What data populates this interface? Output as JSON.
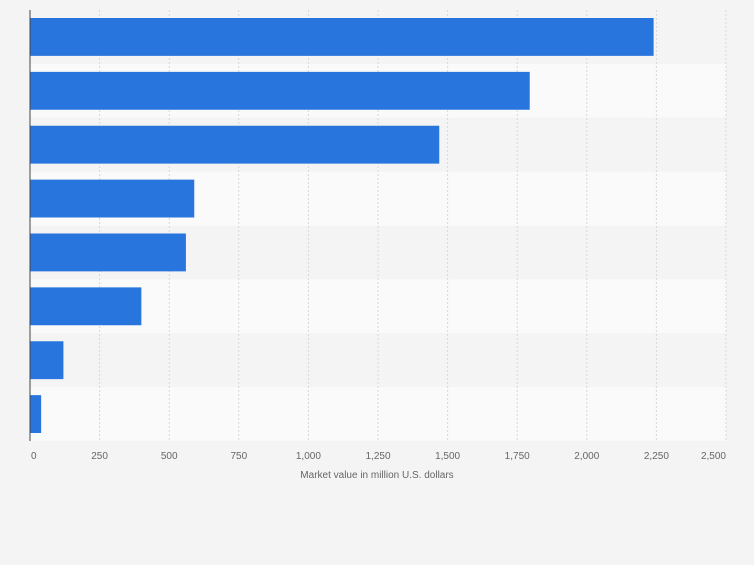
{
  "chart_data": {
    "type": "bar",
    "orientation": "horizontal",
    "categories": [
      "",
      "",
      "",
      "",
      "",
      "",
      "",
      ""
    ],
    "values": [
      2240,
      1795,
      1470,
      590,
      560,
      400,
      120,
      40
    ],
    "xlabel": "Market value in million U.S. dollars",
    "ylabel": "",
    "xlim": [
      0,
      2500
    ],
    "xticks": [
      0,
      250,
      500,
      750,
      1000,
      1250,
      1500,
      1750,
      2000,
      2250,
      2500
    ],
    "xtick_labels": [
      "0",
      "250",
      "500",
      "750",
      "1,000",
      "1,250",
      "1,500",
      "1,750",
      "2,000",
      "2,250",
      "2,500"
    ],
    "grid": true,
    "bar_color": "#2876dd"
  },
  "colors": {
    "background": "#f4f4f4",
    "band_alt": "#fafafa",
    "grid": "#d8d8d8",
    "axis": "#444444",
    "tick_text": "#666666"
  }
}
